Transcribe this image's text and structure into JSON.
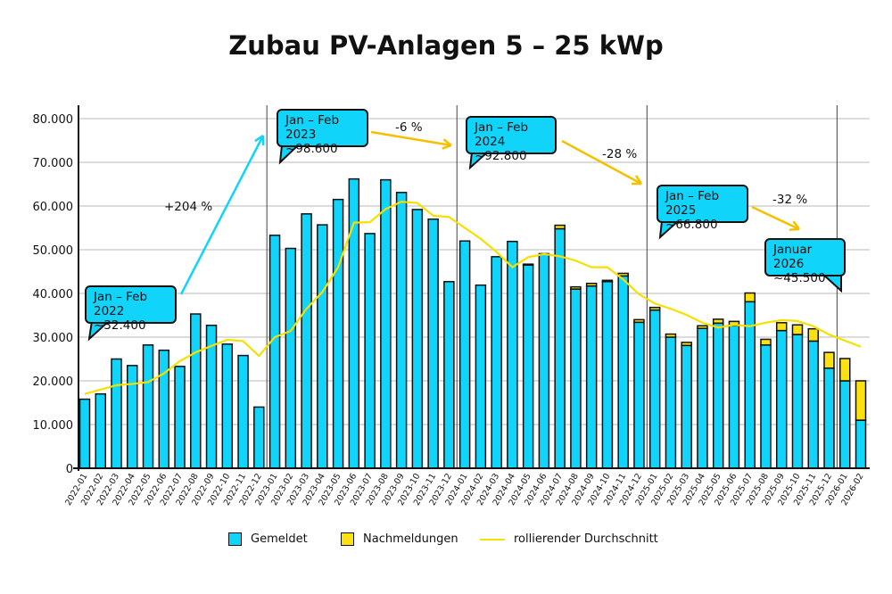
{
  "chart_data": {
    "type": "bar",
    "stacked": true,
    "title": "Zubau PV-Anlagen 5 – 25 kWp",
    "xlabel": "",
    "ylabel": "",
    "ylim": [
      0,
      80000
    ],
    "yticks": [
      "0",
      "10.000",
      "20.000",
      "30.000",
      "40.000",
      "50.000",
      "60.000",
      "70.000",
      "80.000"
    ],
    "grid": true,
    "legend_position": "bottom",
    "categories": [
      "2022-01",
      "2022-02",
      "2022-03",
      "2022-04",
      "2022-05",
      "2022-06",
      "2022-07",
      "2022-08",
      "2022-09",
      "2022-10",
      "2022-11",
      "2022-12",
      "2023-01",
      "2023-02",
      "2023-03",
      "2023-04",
      "2023-05",
      "2023-06",
      "2023-07",
      "2023-08",
      "2023-09",
      "2023-10",
      "2023-11",
      "2023-12",
      "2024-01",
      "2024-02",
      "2024-03",
      "2024-04",
      "2024-05",
      "2024-06",
      "2024-07",
      "2024-08",
      "2024-09",
      "2024-10",
      "2024-11",
      "2024-12",
      "2025-01",
      "2025-02",
      "2025-03",
      "2025-04",
      "2025-05",
      "2025-06",
      "2025-07",
      "2025-08",
      "2025-09",
      "2025-10",
      "2025-11",
      "2025-12",
      "2026-01",
      "2026-02"
    ],
    "series": [
      {
        "name": "Gemeldet",
        "type": "bar",
        "color": "#11d4fb",
        "values": [
          15800,
          17000,
          25000,
          23500,
          28200,
          27000,
          23300,
          35300,
          32700,
          28400,
          25800,
          14000,
          53300,
          50300,
          58200,
          55700,
          61500,
          66200,
          53700,
          66000,
          63100,
          59200,
          57000,
          42700,
          52000,
          41900,
          48400,
          51900,
          46500,
          49100,
          54800,
          41000,
          41700,
          42700,
          44000,
          33400,
          36200,
          30000,
          28100,
          32000,
          33200,
          32600,
          38100,
          28200,
          31500,
          30600,
          29100,
          22900,
          20000,
          11000
        ]
      },
      {
        "name": "Nachmeldungen",
        "type": "bar",
        "color": "#fbe10f",
        "values": [
          0,
          0,
          0,
          0,
          0,
          0,
          0,
          0,
          0,
          0,
          0,
          0,
          0,
          0,
          0,
          0,
          0,
          0,
          0,
          0,
          0,
          0,
          0,
          0,
          0,
          0,
          0,
          0,
          200,
          0,
          800,
          500,
          600,
          300,
          600,
          600,
          600,
          700,
          700,
          600,
          900,
          1000,
          2000,
          1300,
          1800,
          2200,
          2800,
          3600,
          5100,
          9000
        ]
      },
      {
        "name": "rollierender Durchschnitt",
        "type": "line",
        "color": "#f5e000",
        "values": [
          17000,
          18000,
          19000,
          19300,
          19700,
          21700,
          24500,
          26500,
          28000,
          29400,
          29100,
          25700,
          30000,
          31400,
          36500,
          40300,
          46000,
          56200,
          56300,
          59300,
          61000,
          60700,
          57800,
          57500,
          55000,
          52500,
          49500,
          46000,
          48300,
          49000,
          48500,
          47500,
          46000,
          46000,
          43200,
          39800,
          37700,
          36500,
          35100,
          33300,
          32200,
          32800,
          32500,
          33300,
          33900,
          33700,
          32500,
          30600,
          27800,
          27800
        ]
      }
    ],
    "annotations": {
      "callouts": [
        {
          "line1": "Jan – Feb 2022",
          "line2": "~32.400"
        },
        {
          "line1": "Jan – Feb 2023",
          "line2": "~98.600"
        },
        {
          "line1": "Jan – Feb 2024",
          "line2": "~92.800"
        },
        {
          "line1": "Jan – Feb 2025",
          "line2": "~66.800"
        },
        {
          "line1": "Januar 2026",
          "line2": "~45.500"
        }
      ],
      "changes": [
        "+204 %",
        "-6 %",
        "-28 %",
        "-32 %"
      ]
    }
  }
}
